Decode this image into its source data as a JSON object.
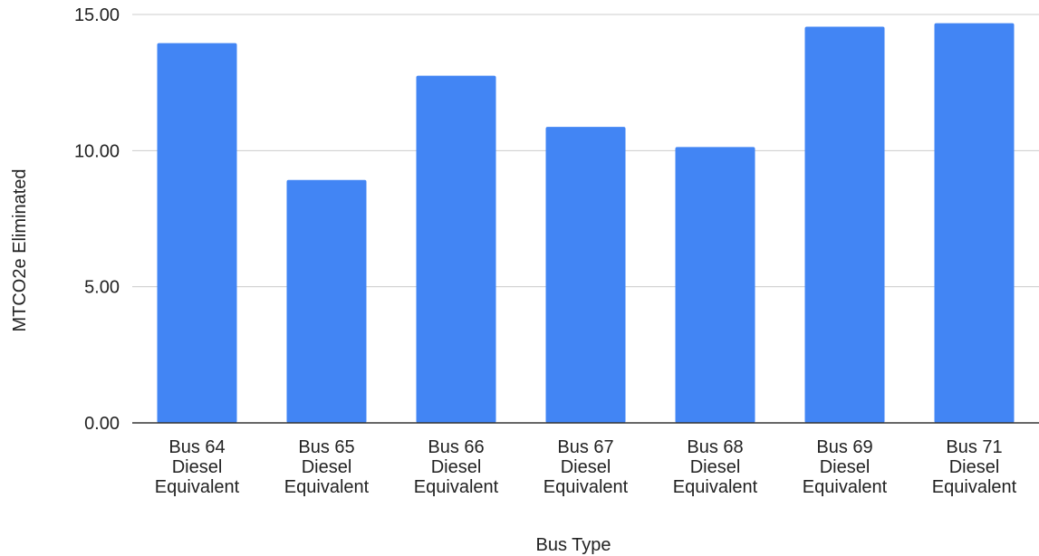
{
  "chart_data": {
    "type": "bar",
    "title": "",
    "xlabel": "Bus Type",
    "ylabel": "MTCO2e Eliminated",
    "ylim": [
      0,
      15
    ],
    "yticks": [
      "0.00",
      "5.00",
      "10.00",
      "15.00"
    ],
    "ytick_values": [
      0,
      5,
      10,
      15
    ],
    "grid": true,
    "categories": [
      [
        "Bus 64",
        "Diesel",
        "Equivalent"
      ],
      [
        "Bus 65",
        "Diesel",
        "Equivalent"
      ],
      [
        "Bus 66",
        "Diesel",
        "Equivalent"
      ],
      [
        "Bus 67",
        "Diesel",
        "Equivalent"
      ],
      [
        "Bus 68",
        "Diesel",
        "Equivalent"
      ],
      [
        "Bus 69",
        "Diesel",
        "Equivalent"
      ],
      [
        "Bus 71",
        "Diesel",
        "Equivalent"
      ]
    ],
    "values": [
      13.95,
      8.92,
      12.75,
      10.87,
      10.13,
      14.55,
      14.68
    ],
    "bar_color": "#4285f4",
    "grid_color": "#cccccc",
    "axis_color": "#333333"
  }
}
